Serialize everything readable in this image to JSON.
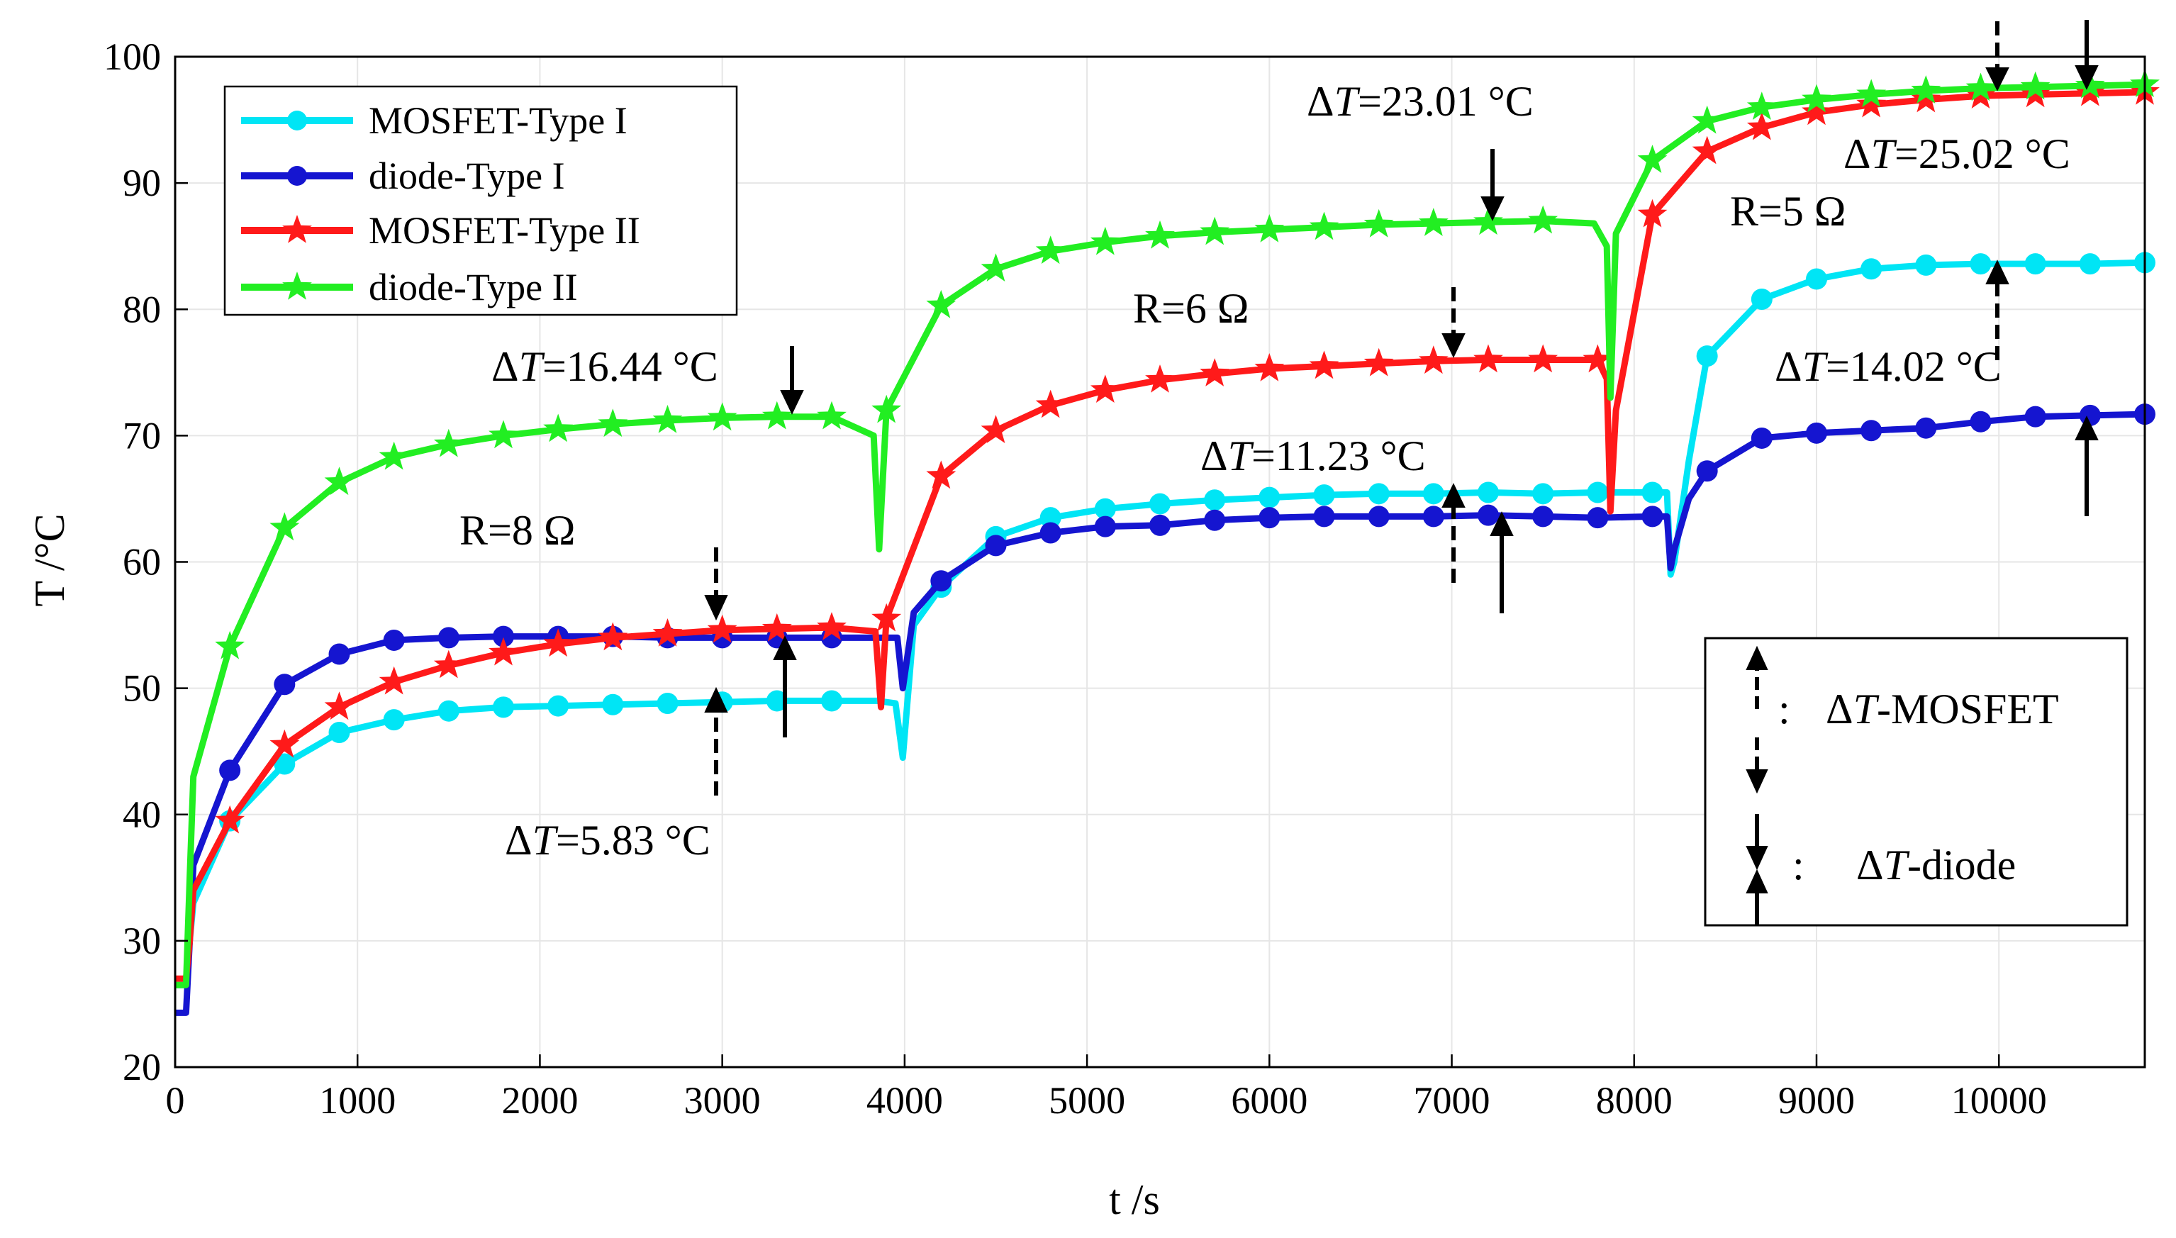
{
  "chart_data": {
    "type": "line",
    "xlabel": "t /s",
    "ylabel": "T /°C",
    "xlim": [
      0,
      10800
    ],
    "ylim": [
      20,
      100
    ],
    "xticks": [
      0,
      1000,
      2000,
      3000,
      4000,
      5000,
      6000,
      7000,
      8000,
      9000,
      10000
    ],
    "yticks": [
      20,
      30,
      40,
      50,
      60,
      70,
      80,
      90,
      100
    ],
    "grid": true,
    "legend_position": "top-left",
    "series": [
      {
        "name": "MOSFET-Type I",
        "color": "#00e5f5",
        "marker": "circle",
        "x": [
          0,
          60,
          80,
          100,
          300,
          600,
          900,
          1200,
          1500,
          1800,
          2100,
          2400,
          2700,
          3000,
          3300,
          3600,
          3850,
          3950,
          3990,
          4050,
          4200,
          4500,
          4800,
          5100,
          5400,
          5700,
          6000,
          6300,
          6600,
          6900,
          7200,
          7500,
          7800,
          7850,
          8100,
          8180,
          8200,
          8220,
          8300,
          8400,
          8700,
          9000,
          9300,
          9600,
          9900,
          10200,
          10500,
          10800
        ],
        "y": [
          26.5,
          26.5,
          30,
          33,
          39.5,
          44,
          46.5,
          47.5,
          48.2,
          48.5,
          48.6,
          48.7,
          48.8,
          48.9,
          49,
          49,
          49,
          48.8,
          44.5,
          55,
          58,
          62,
          63.5,
          64.2,
          64.6,
          64.9,
          65.1,
          65.3,
          65.4,
          65.4,
          65.5,
          65.4,
          65.5,
          65.5,
          65.5,
          65.5,
          59,
          60,
          68,
          76.3,
          80.8,
          82.4,
          83.2,
          83.5,
          83.6,
          83.6,
          83.6,
          83.7
        ]
      },
      {
        "name": "diode-Type I",
        "color": "#1515d0",
        "marker": "circle",
        "x": [
          0,
          60,
          80,
          100,
          300,
          600,
          900,
          1200,
          1500,
          1800,
          2100,
          2400,
          2700,
          3000,
          3300,
          3600,
          3850,
          3960,
          3990,
          4050,
          4200,
          4500,
          4800,
          5100,
          5400,
          5700,
          6000,
          6300,
          6600,
          6900,
          7200,
          7500,
          7800,
          8100,
          8180,
          8200,
          8220,
          8300,
          8400,
          8700,
          9000,
          9300,
          9600,
          9900,
          10200,
          10500,
          10800
        ],
        "y": [
          24.3,
          24.3,
          30,
          36,
          43.5,
          50.3,
          52.7,
          53.8,
          54,
          54.1,
          54.1,
          54.1,
          54,
          54,
          54,
          54,
          54,
          54,
          50,
          56,
          58.5,
          61.3,
          62.3,
          62.8,
          62.9,
          63.3,
          63.5,
          63.6,
          63.6,
          63.6,
          63.7,
          63.6,
          63.5,
          63.6,
          63.6,
          59.5,
          61,
          65,
          67.2,
          69.8,
          70.2,
          70.4,
          70.6,
          71.1,
          71.5,
          71.6,
          71.7
        ]
      },
      {
        "name": "MOSFET-Type II",
        "color": "#ff1a1a",
        "marker": "star",
        "x": [
          0,
          60,
          80,
          100,
          300,
          600,
          900,
          1200,
          1500,
          1800,
          2100,
          2400,
          2700,
          3000,
          3300,
          3600,
          3840,
          3870,
          3900,
          4200,
          4500,
          4800,
          5100,
          5400,
          5700,
          6000,
          6300,
          6600,
          6900,
          7200,
          7500,
          7800,
          7850,
          7870,
          7900,
          8100,
          8400,
          8700,
          9000,
          9300,
          9600,
          9900,
          10200,
          10500,
          10800
        ],
        "y": [
          27,
          27,
          30,
          34,
          39.5,
          45.5,
          48.5,
          50.5,
          51.8,
          52.8,
          53.5,
          54,
          54.3,
          54.6,
          54.7,
          54.8,
          54.5,
          48.5,
          55.5,
          66.8,
          70.4,
          72.4,
          73.6,
          74.4,
          74.9,
          75.3,
          75.5,
          75.7,
          75.9,
          76,
          76,
          76,
          74.5,
          64,
          72,
          87.5,
          92.5,
          94.4,
          95.6,
          96.2,
          96.6,
          96.9,
          97,
          97.1,
          97.2
        ]
      },
      {
        "name": "diode-Type II",
        "color": "#22ee22",
        "marker": "star",
        "x": [
          0,
          60,
          80,
          100,
          300,
          600,
          900,
          1200,
          1500,
          1800,
          2100,
          2400,
          2700,
          3000,
          3300,
          3600,
          3830,
          3860,
          3900,
          4200,
          4500,
          4800,
          5100,
          5400,
          5700,
          6000,
          6300,
          6600,
          6900,
          7200,
          7500,
          7780,
          7850,
          7870,
          7900,
          8100,
          8400,
          8700,
          9000,
          9300,
          9600,
          9900,
          10200,
          10500,
          10800
        ],
        "y": [
          26.5,
          26.5,
          35,
          43,
          53.3,
          62.7,
          66.3,
          68.3,
          69.3,
          70,
          70.5,
          70.9,
          71.2,
          71.4,
          71.5,
          71.5,
          70,
          61,
          72,
          80.3,
          83.2,
          84.6,
          85.3,
          85.8,
          86.1,
          86.3,
          86.5,
          86.7,
          86.8,
          86.9,
          87,
          86.8,
          85,
          73,
          86,
          91.8,
          94.9,
          96,
          96.6,
          97,
          97.3,
          97.5,
          97.6,
          97.7,
          97.8
        ]
      }
    ],
    "annotations": {
      "r8": "R=8 Ω",
      "r6": "R=6 Ω",
      "r5": "R=5 Ω",
      "dt1_pre": "Δ",
      "dt1_var": "T",
      "dt1_val": "=16.44 °C",
      "dt2_pre": "Δ",
      "dt2_var": "T",
      "dt2_val": "=5.83 °C",
      "dt3_pre": "Δ",
      "dt3_var": "T",
      "dt3_val": "=11.23 °C",
      "dt4_pre": "Δ",
      "dt4_var": "T",
      "dt4_val": "=23.01 °C",
      "dt5_pre": "Δ",
      "dt5_var": "T",
      "dt5_val": "=14.02 °C",
      "dt6_pre": "Δ",
      "dt6_var": "T",
      "dt6_val": "=25.02 °C"
    },
    "key_box": {
      "mosfet_colon": ":",
      "mosfet_pre": "Δ",
      "mosfet_var": "T",
      "mosfet_label": "-MOSFET",
      "diode_colon": ":",
      "diode_pre": "Δ",
      "diode_var": "T",
      "diode_label": "-diode"
    }
  }
}
